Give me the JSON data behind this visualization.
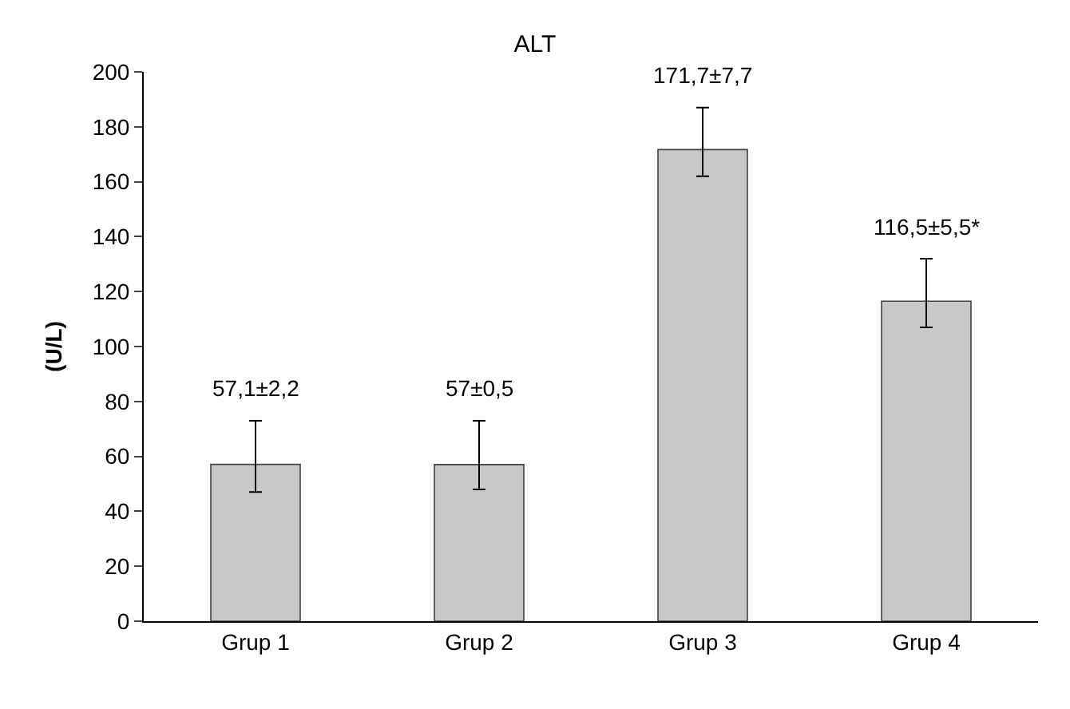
{
  "chart_data": {
    "type": "bar",
    "title": "ALT",
    "ylabel": "(U/L)",
    "categories": [
      "Grup 1",
      "Grup 2",
      "Grup 3",
      "Grup 4"
    ],
    "values": [
      57.1,
      57,
      171.7,
      116.5
    ],
    "errors": [
      [
        47,
        73
      ],
      [
        48,
        73
      ],
      [
        162,
        187
      ],
      [
        107,
        132
      ]
    ],
    "value_labels": [
      "57,1±2,2",
      "57±0,5",
      "171,7±7,7",
      "116,5±5,5*"
    ],
    "color": "#c8c8c8",
    "ylim": [
      0,
      200
    ],
    "yticks": [
      0,
      20,
      40,
      60,
      80,
      100,
      120,
      140,
      160,
      180,
      200
    ],
    "grid": false,
    "legend": false
  }
}
